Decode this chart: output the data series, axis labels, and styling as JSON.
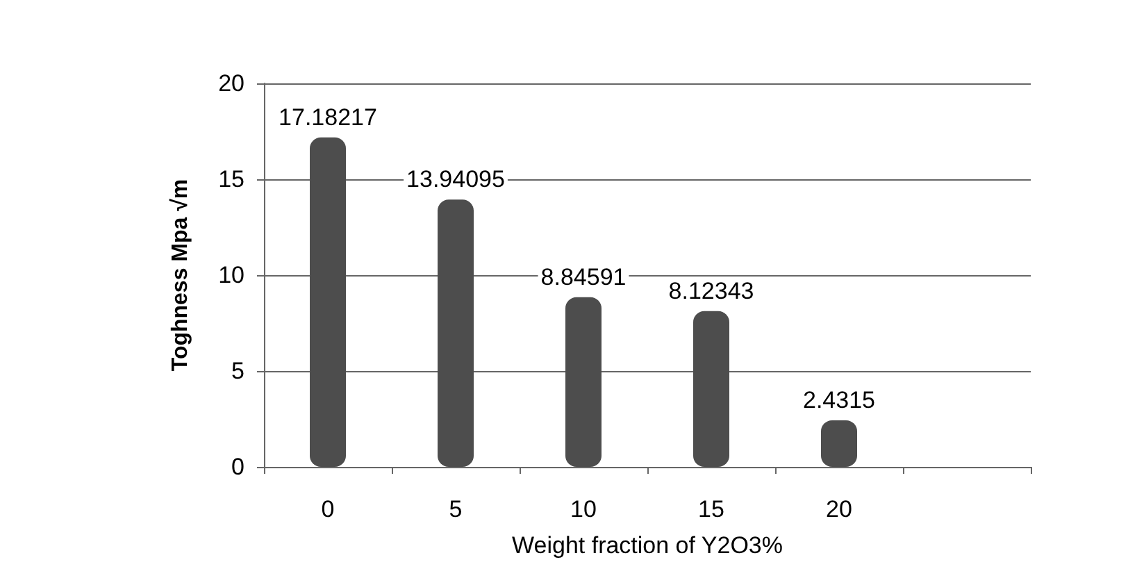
{
  "chart_data": {
    "type": "bar",
    "xlabel": "Weight fraction of Y2O3%",
    "ylabel": "Toghness Mpa √m",
    "categories": [
      "0",
      "5",
      "10",
      "15",
      "20",
      null
    ],
    "values": [
      17.18217,
      13.94095,
      8.84591,
      8.12343,
      2.4315,
      null
    ],
    "color": "#4d4d4d",
    "ylim": [
      0,
      20
    ],
    "yticks": [
      0,
      5,
      10,
      15,
      20
    ],
    "grid": "y",
    "data_labels": true
  }
}
